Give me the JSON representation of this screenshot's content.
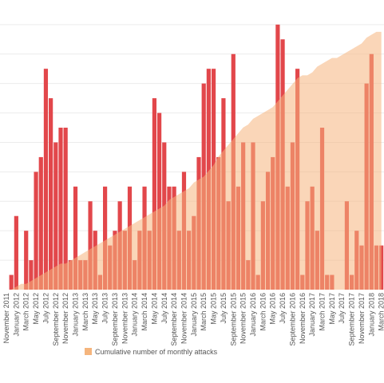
{
  "chart_data": {
    "type": "bar",
    "categories": [
      "November 2011",
      null,
      "January 2012",
      null,
      "March 2012",
      null,
      "May 2012",
      null,
      "July 2012",
      null,
      "September 2012",
      null,
      "November 2012",
      null,
      "January 2013",
      null,
      "March 2013",
      null,
      "May 2013",
      null,
      "July 2013",
      null,
      "September 2013",
      null,
      "November 2013",
      null,
      "January 2014",
      null,
      "March 2014",
      null,
      "May 2014",
      null,
      "July 2014",
      null,
      "September 2014",
      null,
      "November 2014",
      null,
      "January 2015",
      null,
      "March 2015",
      null,
      "May 2015",
      null,
      "July 2015",
      null,
      "September 2015",
      null,
      "November 2015",
      null,
      "January 2016",
      null,
      "March 2016",
      null,
      "May 2016",
      null,
      "July 2016",
      null,
      "September 2016",
      null,
      "November 2016",
      null,
      "January 2017",
      null,
      "March 2017",
      null,
      "May 2017",
      null,
      "July 2017",
      null,
      "September 2017",
      null,
      "November 2017",
      null,
      "January 2018",
      null,
      "March 2018"
    ],
    "series": [
      {
        "color": "#e2474b",
        "values": [
          0,
          1,
          5,
          0,
          4,
          2,
          8,
          9,
          15,
          13,
          10,
          11,
          11,
          2,
          7,
          2,
          2,
          6,
          4,
          1,
          7,
          3,
          4,
          6,
          4,
          7,
          2,
          4,
          7,
          4,
          13,
          12,
          10,
          7,
          7,
          4,
          8,
          4,
          5,
          9,
          14,
          15,
          15,
          9,
          13,
          6,
          16,
          7,
          10,
          2,
          10,
          1,
          6,
          8,
          9,
          18,
          17,
          7,
          10,
          15,
          1,
          6,
          7,
          4,
          11,
          1,
          1,
          0,
          0,
          6,
          1,
          4,
          3,
          14,
          16,
          3,
          3
        ]
      },
      {
        "name": "Cumulative number of monthly attacks",
        "color": "#f5b57d",
        "type": "area",
        "axis": "y2",
        "values": [
          0,
          0,
          1,
          2,
          2,
          3,
          4,
          5,
          6,
          7,
          8,
          9,
          9,
          10,
          11,
          12,
          13,
          14,
          15,
          16,
          17,
          18,
          19,
          20,
          21,
          22,
          23,
          24,
          25,
          26,
          27,
          28,
          29,
          31,
          32,
          33,
          34,
          35,
          37,
          38,
          39,
          41,
          43,
          46,
          48,
          50,
          52,
          54,
          56,
          57,
          59,
          60,
          61,
          62,
          63,
          65,
          67,
          69,
          71,
          73,
          74,
          74,
          75,
          77,
          78,
          79,
          80,
          80,
          81,
          82,
          83,
          84,
          85,
          87,
          88,
          89,
          89
        ]
      }
    ],
    "ylim": [
      0,
      19.67
    ],
    "yticks": [
      2,
      4,
      6,
      8,
      10,
      12,
      14,
      16,
      18
    ],
    "y2lim": [
      0,
      100
    ],
    "grid": true,
    "legend": "bottom"
  }
}
